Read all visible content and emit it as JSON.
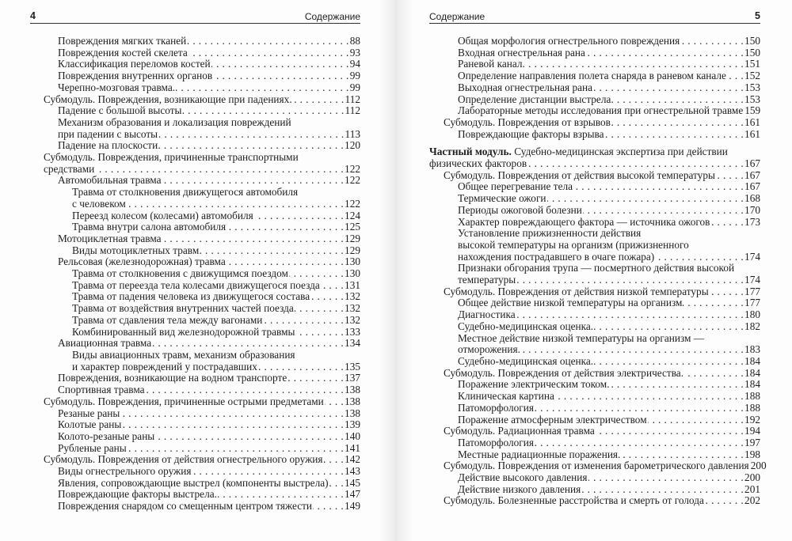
{
  "left_page": {
    "page_number": "4",
    "running_title": "Содержание",
    "entries": [
      {
        "level": 1,
        "lines": [
          "Повреждения мягких тканей"
        ],
        "page": "88"
      },
      {
        "level": 1,
        "lines": [
          "Повреждения костей скелета"
        ],
        "page": "93"
      },
      {
        "level": 1,
        "lines": [
          "Классификация переломов костей"
        ],
        "page": "94"
      },
      {
        "level": 1,
        "lines": [
          "Повреждения внутренних органов"
        ],
        "page": "99"
      },
      {
        "level": 1,
        "lines": [
          "Черепно-мозговая травма."
        ],
        "page": "99"
      },
      {
        "level": 0,
        "lines": [
          "Субмодуль. Повреждения, возникающие при падениях."
        ],
        "page": "112"
      },
      {
        "level": 1,
        "lines": [
          "Падение с большой высоты"
        ],
        "page": "112"
      },
      {
        "level": 1,
        "lines": [
          "Механизм образования и локализация повреждений",
          "при падении с высоты"
        ],
        "page": "113"
      },
      {
        "level": 1,
        "lines": [
          "Падение на плоскости"
        ],
        "page": "120"
      },
      {
        "level": 0,
        "lines": [
          "Субмодуль. Повреждения, причиненные транспортными",
          "средствами"
        ],
        "page": "122"
      },
      {
        "level": 1,
        "lines": [
          "Автомобильная травма"
        ],
        "page": "122"
      },
      {
        "level": 2,
        "lines": [
          "Травма от столкновения движущегося автомобиля",
          "с человеком"
        ],
        "page": "122"
      },
      {
        "level": 2,
        "lines": [
          "Переезд колесом (колесами) автомобиля"
        ],
        "page": "124"
      },
      {
        "level": 2,
        "lines": [
          "Травма внутри салона автомобиля"
        ],
        "page": "125"
      },
      {
        "level": 1,
        "lines": [
          "Мотоциклетная травма"
        ],
        "page": "129"
      },
      {
        "level": 2,
        "lines": [
          "Виды мотоциклетных травм"
        ],
        "page": "129"
      },
      {
        "level": 1,
        "lines": [
          "Рельсовая (железнодорожная) травма"
        ],
        "page": "130"
      },
      {
        "level": 2,
        "lines": [
          "Травма от столкновения с движущимся поездом"
        ],
        "page": "130"
      },
      {
        "level": 2,
        "lines": [
          "Травма от переезда тела колесами движущегося поезда"
        ],
        "page": "131"
      },
      {
        "level": 2,
        "lines": [
          "Травма от падения человека из движущегося состава"
        ],
        "page": "132"
      },
      {
        "level": 2,
        "lines": [
          "Травма от воздействия внутренних частей поезда"
        ],
        "page": "132"
      },
      {
        "level": 2,
        "lines": [
          "Травма от сдавления тела между вагонами"
        ],
        "page": "132"
      },
      {
        "level": 2,
        "lines": [
          "Комбинированный вид железнодорожной травмы"
        ],
        "page": "133"
      },
      {
        "level": 1,
        "lines": [
          "Авиационная травма"
        ],
        "page": "134"
      },
      {
        "level": 2,
        "lines": [
          "Виды авиационных травм, механизм образования",
          "и характер повреждений у пострадавших"
        ],
        "page": "135"
      },
      {
        "level": 1,
        "lines": [
          "Повреждения, возникающие на водном транспорте"
        ],
        "page": "137"
      },
      {
        "level": 1,
        "lines": [
          "Спортивная травма"
        ],
        "page": "138"
      },
      {
        "level": 0,
        "lines": [
          "Субмодуль. Повреждения, причиненные острыми предметами"
        ],
        "page": "138"
      },
      {
        "level": 1,
        "lines": [
          "Резаные раны"
        ],
        "page": "138"
      },
      {
        "level": 1,
        "lines": [
          "Колотые раны"
        ],
        "page": "139"
      },
      {
        "level": 1,
        "lines": [
          "Колото-резаные раны"
        ],
        "page": "140"
      },
      {
        "level": 1,
        "lines": [
          "Рубленые раны"
        ],
        "page": "141"
      },
      {
        "level": 0,
        "lines": [
          "Субмодуль. Повреждения от действия огнестрельного оружия"
        ],
        "page": "142"
      },
      {
        "level": 1,
        "lines": [
          "Виды огнестрельного оружия"
        ],
        "page": "143"
      },
      {
        "level": 1,
        "lines": [
          "Явления, сопровождающие выстрел (компоненты выстрела)"
        ],
        "page": "145"
      },
      {
        "level": 1,
        "lines": [
          "Повреждающие факторы выстрела."
        ],
        "page": "147"
      },
      {
        "level": 1,
        "lines": [
          "Повреждения снарядом со смещенным центром тяжести"
        ],
        "page": "149"
      }
    ]
  },
  "right_page": {
    "page_number": "5",
    "running_title": "Содержание",
    "entries": [
      {
        "level": 2,
        "lines": [
          "Общая морфология огнестрельного повреждения"
        ],
        "page": "150"
      },
      {
        "level": 2,
        "lines": [
          "Входная огнестрельная рана"
        ],
        "page": "150"
      },
      {
        "level": 2,
        "lines": [
          "Раневой канал."
        ],
        "page": "151"
      },
      {
        "level": 2,
        "lines": [
          "Определение направления полета снаряда в раневом канале"
        ],
        "page": "152"
      },
      {
        "level": 2,
        "lines": [
          "Выходная огнестрельная рана"
        ],
        "page": "153"
      },
      {
        "level": 2,
        "lines": [
          "Определение дистанции выстрела"
        ],
        "page": "153"
      },
      {
        "level": 2,
        "lines": [
          "Лабораторные методы исследования при огнестрельной травме"
        ],
        "page": "159"
      },
      {
        "level": 1,
        "lines": [
          "Субмодуль. Повреждения от взрывов"
        ],
        "page": "161"
      },
      {
        "level": 2,
        "lines": [
          "Повреждающие факторы взрыва"
        ],
        "page": "161"
      },
      {
        "level": 0,
        "bold": "Частный модуль.",
        "gap": true,
        "lines": [
          " Судебно-медицинская экспертиза при действии",
          "физических факторов"
        ],
        "page": "167"
      },
      {
        "level": 1,
        "lines": [
          "Субмодуль. Повреждения от действия высокой температуры"
        ],
        "page": "167"
      },
      {
        "level": 2,
        "lines": [
          "Общее перегревание тела"
        ],
        "page": "167"
      },
      {
        "level": 2,
        "lines": [
          "Термические ожоги"
        ],
        "page": "168"
      },
      {
        "level": 2,
        "lines": [
          "Периоды ожоговой болезни"
        ],
        "page": "170"
      },
      {
        "level": 2,
        "lines": [
          "Характер повреждающего фактора — источника ожогов"
        ],
        "page": "173"
      },
      {
        "level": 2,
        "lines": [
          "Установление прижизненности действия",
          "высокой температуры на организм (прижизненного",
          "нахождения пострадавшего в очаге пожара)"
        ],
        "page": "174"
      },
      {
        "level": 2,
        "lines": [
          "Признаки обгорания трупа — посмертного действия высокой",
          "температуры"
        ],
        "page": "174"
      },
      {
        "level": 1,
        "lines": [
          "Субмодуль. Повреждения от действия низкой температуры"
        ],
        "page": "177"
      },
      {
        "level": 2,
        "lines": [
          "Общее действие низкой температуры на организм"
        ],
        "page": "177"
      },
      {
        "level": 2,
        "lines": [
          "Диагностика"
        ],
        "page": "180"
      },
      {
        "level": 2,
        "lines": [
          "Судебно-медицинская оценка."
        ],
        "page": "182"
      },
      {
        "level": 2,
        "lines": [
          "Местное действие низкой температуры на организм —",
          "отморожения."
        ],
        "page": "183"
      },
      {
        "level": 2,
        "lines": [
          "Судебно-медицинская оценка."
        ],
        "page": "184"
      },
      {
        "level": 1,
        "lines": [
          "Субмодуль. Повреждения от действия электричества."
        ],
        "page": "184"
      },
      {
        "level": 2,
        "lines": [
          "Поражение электрическим током."
        ],
        "page": "184"
      },
      {
        "level": 2,
        "lines": [
          "Клиническая картина"
        ],
        "page": "188"
      },
      {
        "level": 2,
        "lines": [
          "Патоморфология"
        ],
        "page": "188"
      },
      {
        "level": 2,
        "lines": [
          "Поражение атмосферным электричеством"
        ],
        "page": "192"
      },
      {
        "level": 1,
        "lines": [
          "Субмодуль. Радиационная травма"
        ],
        "page": "194"
      },
      {
        "level": 2,
        "lines": [
          "Патоморфология"
        ],
        "page": "197"
      },
      {
        "level": 2,
        "lines": [
          "Местные радиационные поражения."
        ],
        "page": "198"
      },
      {
        "level": 1,
        "lines": [
          "Субмодуль. Повреждения от изменения барометрического давления"
        ],
        "page": "200"
      },
      {
        "level": 2,
        "lines": [
          "Действие высокого давления"
        ],
        "page": "200"
      },
      {
        "level": 2,
        "lines": [
          "Действие низкого давления"
        ],
        "page": "201"
      },
      {
        "level": 1,
        "lines": [
          "Субмодуль. Болезненные расстройства и смерть от голода"
        ],
        "page": "202"
      }
    ]
  }
}
